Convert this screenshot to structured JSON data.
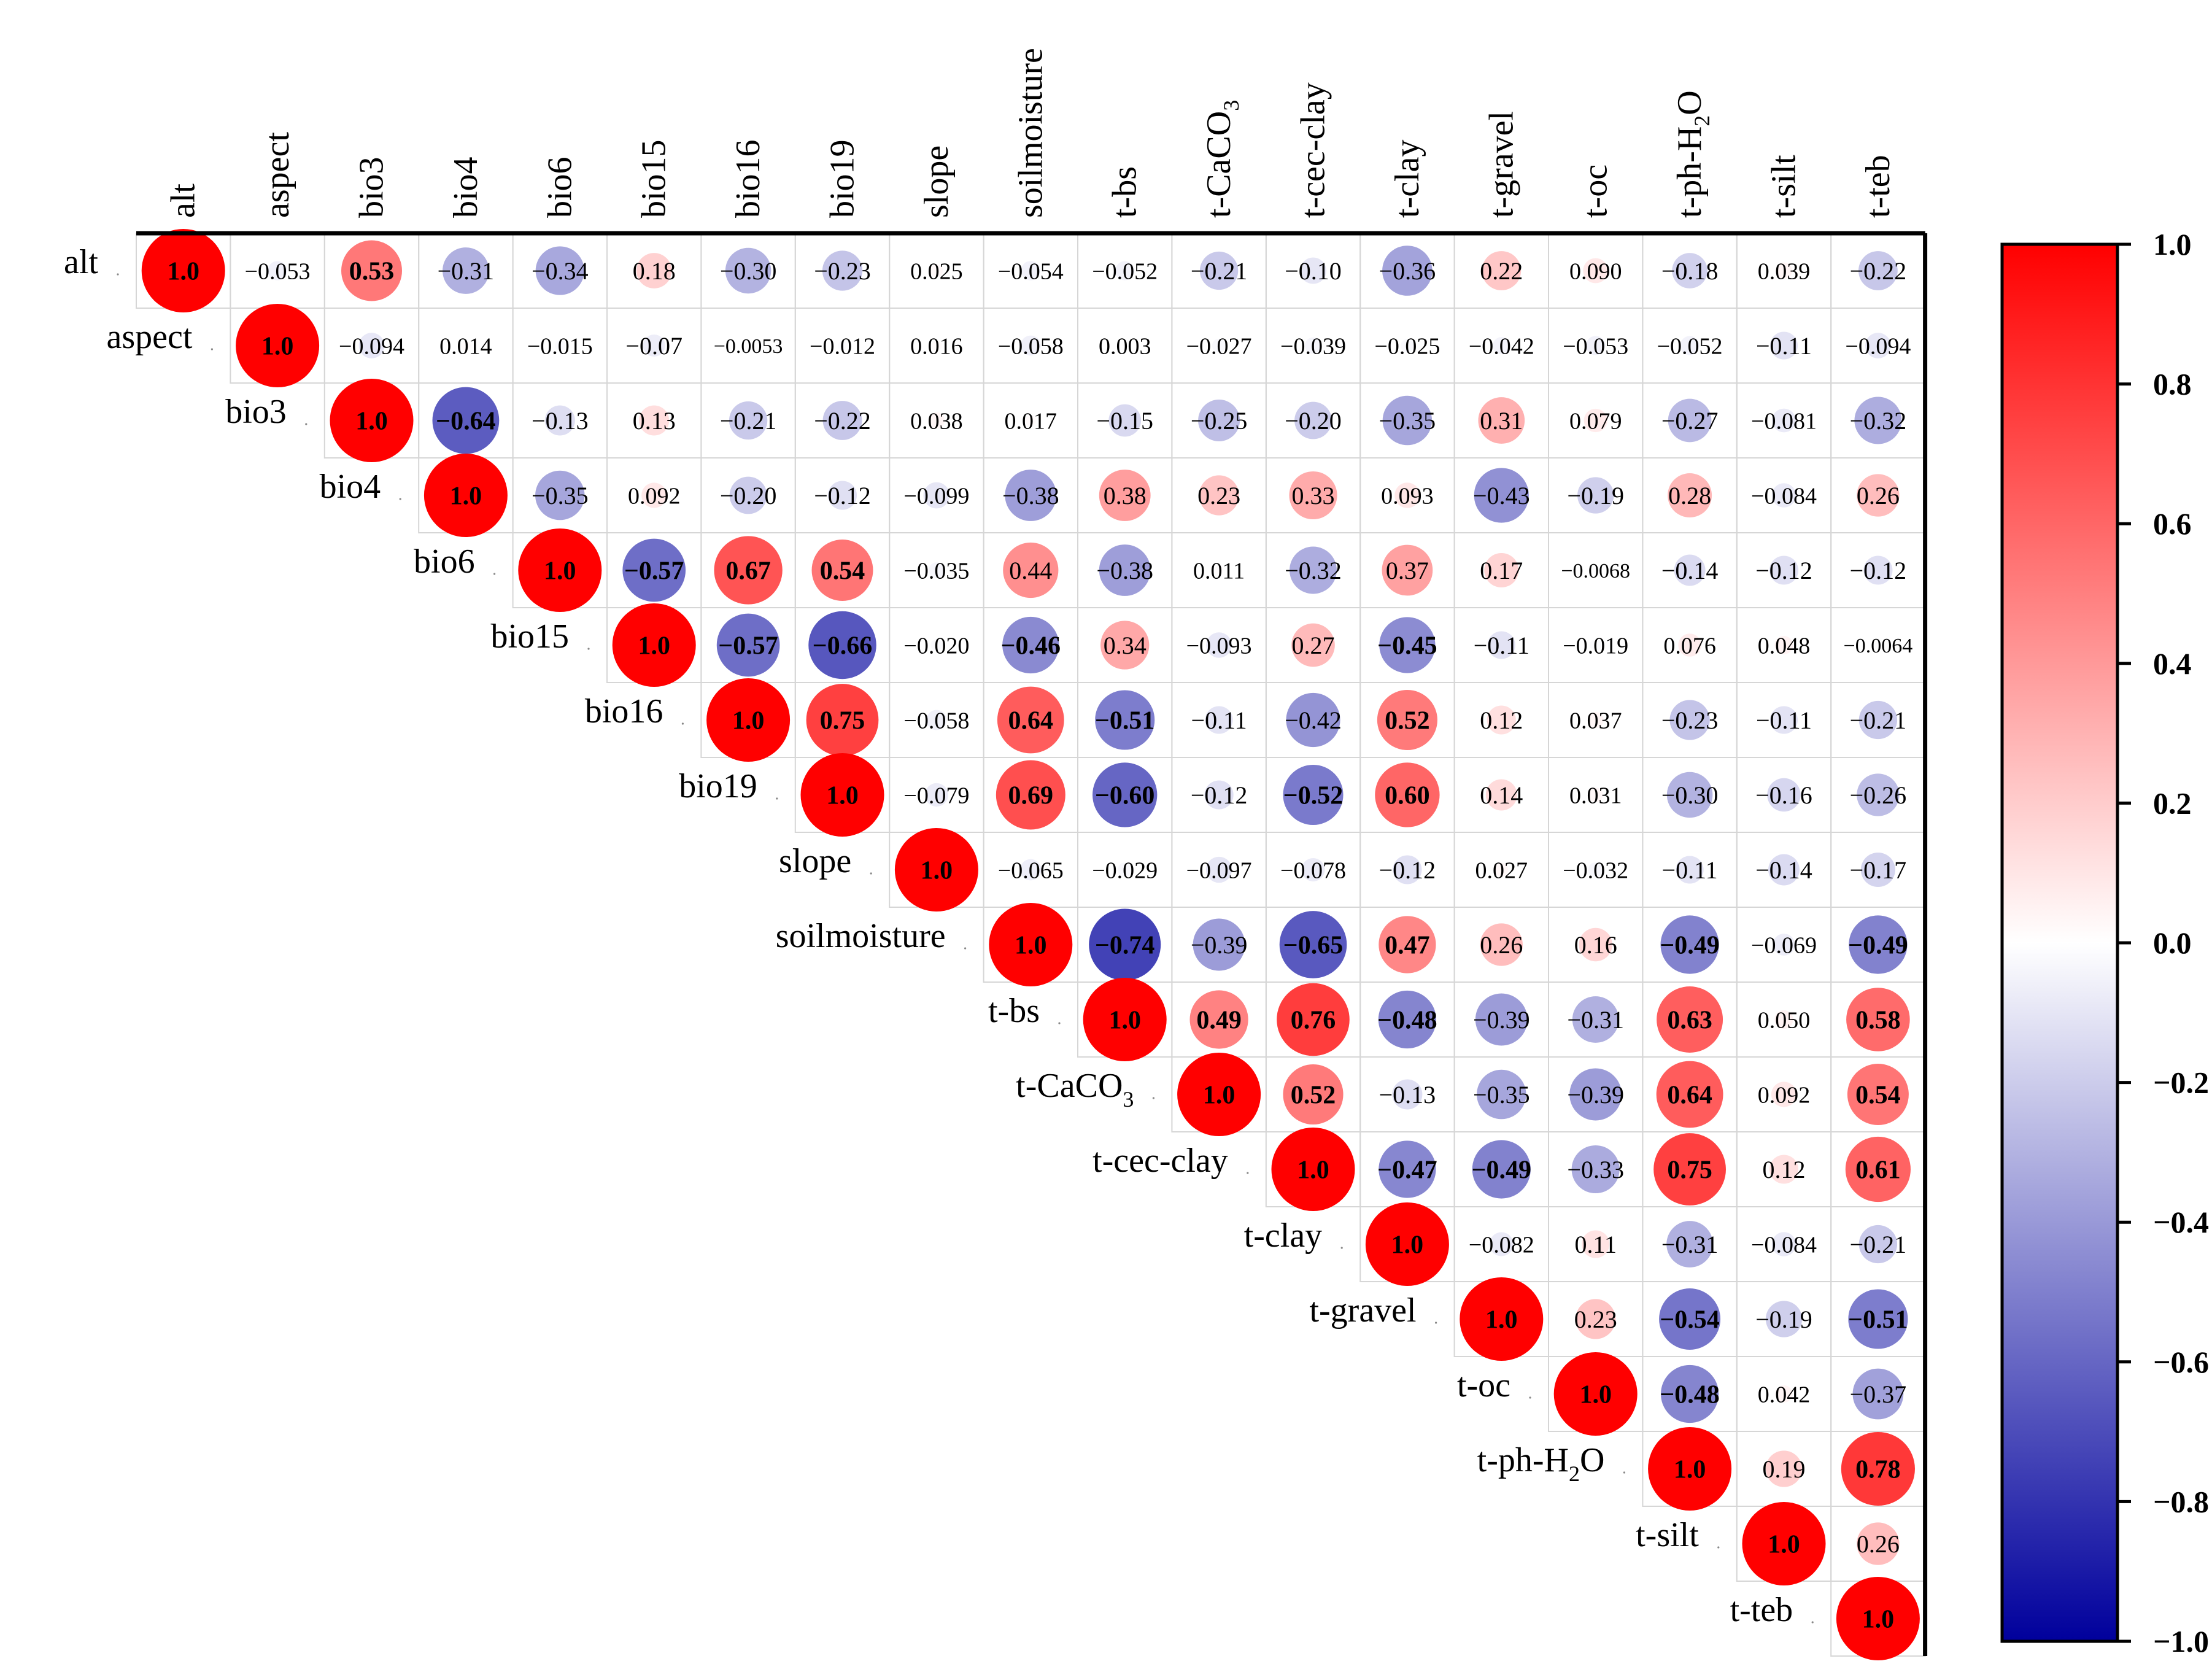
{
  "chart_data": {
    "type": "heatmap",
    "style": "correlation-circles-upper-triangle",
    "variables": [
      {
        "name": "alt"
      },
      {
        "name": "aspect"
      },
      {
        "name": "bio3"
      },
      {
        "name": "bio4"
      },
      {
        "name": "bio6"
      },
      {
        "name": "bio15"
      },
      {
        "name": "bio16"
      },
      {
        "name": "bio19"
      },
      {
        "name": "slope"
      },
      {
        "name": "soilmoisture"
      },
      {
        "name": "t-bs"
      },
      {
        "name": "t-CaCO",
        "sub": "3"
      },
      {
        "name": "t-cec-clay"
      },
      {
        "name": "t-clay"
      },
      {
        "name": "t-gravel"
      },
      {
        "name": "t-oc"
      },
      {
        "name": "t-ph-H",
        "sub": "2",
        "tail": "O"
      },
      {
        "name": "t-silt"
      },
      {
        "name": "t-teb"
      }
    ],
    "matrix": [
      [
        "1.0",
        "-0.053",
        "0.53",
        "-0.31",
        "-0.34",
        "0.18",
        "-0.30",
        "-0.23",
        "0.025",
        "-0.054",
        "-0.052",
        "-0.21",
        "-0.10",
        "-0.36",
        "0.22",
        "0.090",
        "-0.18",
        "0.039",
        "-0.22"
      ],
      [
        "1.0",
        "-0.094",
        "0.014",
        "-0.015",
        "-0.07",
        "-0.0053",
        "-0.012",
        "0.016",
        "-0.058",
        "0.003",
        "-0.027",
        "-0.039",
        "-0.025",
        "-0.042",
        "-0.053",
        "-0.052",
        "-0.11",
        "-0.094"
      ],
      [
        "1.0",
        "-0.64",
        "-0.13",
        "0.13",
        "-0.21",
        "-0.22",
        "0.038",
        "0.017",
        "-0.15",
        "-0.25",
        "-0.20",
        "-0.35",
        "0.31",
        "0.079",
        "-0.27",
        "-0.081",
        "-0.32"
      ],
      [
        "1.0",
        "-0.35",
        "0.092",
        "-0.20",
        "-0.12",
        "-0.099",
        "-0.38",
        "0.38",
        "0.23",
        "0.33",
        "0.093",
        "-0.43",
        "-0.19",
        "0.28",
        "-0.084",
        "0.26"
      ],
      [
        "1.0",
        "-0.57",
        "0.67",
        "0.54",
        "-0.035",
        "0.44",
        "-0.38",
        "0.011",
        "-0.32",
        "0.37",
        "0.17",
        "-0.0068",
        "-0.14",
        "-0.12",
        "-0.12"
      ],
      [
        "1.0",
        "-0.57",
        "-0.66",
        "-0.020",
        "-0.46",
        "0.34",
        "-0.093",
        "0.27",
        "-0.45",
        "-0.11",
        "-0.019",
        "0.076",
        "0.048",
        "-0.0064"
      ],
      [
        "1.0",
        "0.75",
        "-0.058",
        "0.64",
        "-0.51",
        "-0.11",
        "-0.42",
        "0.52",
        "0.12",
        "0.037",
        "-0.23",
        "-0.11",
        "-0.21"
      ],
      [
        "1.0",
        "-0.079",
        "0.69",
        "-0.60",
        "-0.12",
        "-0.52",
        "0.60",
        "0.14",
        "0.031",
        "-0.30",
        "-0.16",
        "-0.26"
      ],
      [
        "1.0",
        "-0.065",
        "-0.029",
        "-0.097",
        "-0.078",
        "-0.12",
        "0.027",
        "-0.032",
        "-0.11",
        "-0.14",
        "-0.17"
      ],
      [
        "1.0",
        "-0.74",
        "-0.39",
        "-0.65",
        "0.47",
        "0.26",
        "0.16",
        "-0.49",
        "-0.069",
        "-0.49"
      ],
      [
        "1.0",
        "0.49",
        "0.76",
        "-0.48",
        "-0.39",
        "-0.31",
        "0.63",
        "0.050",
        "0.58"
      ],
      [
        "1.0",
        "0.52",
        "-0.13",
        "-0.35",
        "-0.39",
        "0.64",
        "0.092",
        "0.54"
      ],
      [
        "1.0",
        "-0.47",
        "-0.49",
        "-0.33",
        "0.75",
        "0.12",
        "0.61"
      ],
      [
        "1.0",
        "-0.082",
        "0.11",
        "-0.31",
        "-0.084",
        "-0.21"
      ],
      [
        "1.0",
        "0.23",
        "-0.54",
        "-0.19",
        "-0.51"
      ],
      [
        "1.0",
        "-0.48",
        "0.042",
        "-0.37"
      ],
      [
        "1.0",
        "0.19",
        "0.78"
      ],
      [
        "1.0",
        "0.26"
      ],
      [
        "1.0"
      ]
    ],
    "colorbar": {
      "min": -1.0,
      "max": 1.0,
      "ticks": [
        "1.0",
        "0.8",
        "0.6",
        "0.4",
        "0.2",
        "0.0",
        "-0.2",
        "-0.4",
        "-0.6",
        "-0.8",
        "-1.0"
      ],
      "color_low": "#00009c",
      "color_mid": "#ffffff",
      "color_high": "#ff0000"
    },
    "bold_threshold": 0.45
  }
}
